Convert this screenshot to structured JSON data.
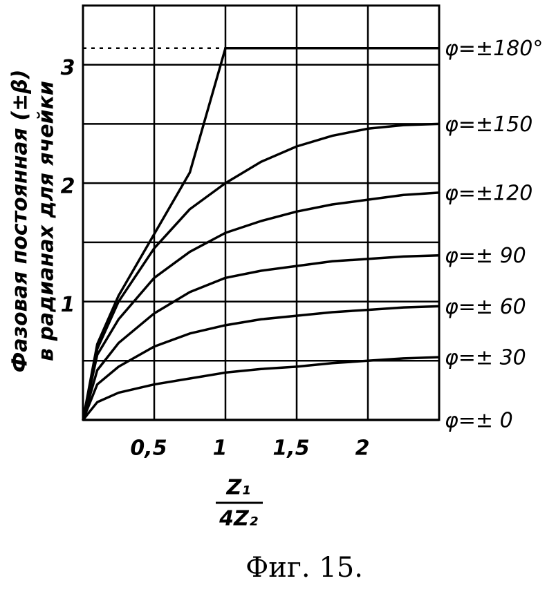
{
  "chart_data": {
    "type": "line",
    "caption": "Фиг. 15.",
    "ylabel": [
      "Фазовая постоянная (±β)",
      "в радианах для ячейки"
    ],
    "xlabel_numerator": "Z₁",
    "xlabel_denominator": "4Z₂",
    "x": [
      0,
      0.1,
      0.25,
      0.5,
      0.75,
      1,
      1.25,
      1.5,
      1.75,
      2,
      2.25,
      2.5
    ],
    "series": [
      {
        "name": "φ=±180°",
        "color": "#000000",
        "values": [
          0,
          0.64,
          1.05,
          1.57,
          2.09,
          3.14,
          3.14,
          3.14,
          3.14,
          3.14,
          3.14,
          3.14
        ]
      },
      {
        "name": "φ=±150",
        "color": "#000000",
        "values": [
          0,
          0.6,
          1.0,
          1.45,
          1.78,
          2.0,
          2.18,
          2.31,
          2.4,
          2.46,
          2.49,
          2.5
        ]
      },
      {
        "name": "φ=±120",
        "color": "#000000",
        "values": [
          0,
          0.55,
          0.85,
          1.2,
          1.42,
          1.58,
          1.68,
          1.76,
          1.82,
          1.86,
          1.9,
          1.92
        ]
      },
      {
        "name": "φ=± 90",
        "color": "#000000",
        "values": [
          0,
          0.42,
          0.65,
          0.9,
          1.08,
          1.2,
          1.26,
          1.3,
          1.34,
          1.36,
          1.38,
          1.39
        ]
      },
      {
        "name": "φ=± 60",
        "color": "#000000",
        "values": [
          0,
          0.3,
          0.45,
          0.62,
          0.73,
          0.8,
          0.85,
          0.88,
          0.91,
          0.93,
          0.95,
          0.96
        ]
      },
      {
        "name": "φ=± 30",
        "color": "#000000",
        "values": [
          0,
          0.15,
          0.23,
          0.3,
          0.35,
          0.4,
          0.43,
          0.45,
          0.48,
          0.5,
          0.52,
          0.53
        ]
      },
      {
        "name": "φ=± 0",
        "color": "#000000",
        "values": [
          0,
          0,
          0,
          0,
          0,
          0,
          0,
          0,
          0,
          0,
          0,
          0
        ]
      }
    ],
    "reference_line": {
      "y": 3.14,
      "x": [
        0,
        1
      ]
    },
    "xlim": [
      0,
      2.5
    ],
    "ylim": [
      0,
      3.5
    ],
    "xticks": [
      {
        "value": 0.5,
        "label": "0,5"
      },
      1,
      {
        "value": 1.5,
        "label": "1,5"
      },
      2
    ],
    "yticks": [
      1,
      2,
      3
    ],
    "yminor": [
      0.5,
      1.5,
      2.5
    ],
    "grid": true
  }
}
